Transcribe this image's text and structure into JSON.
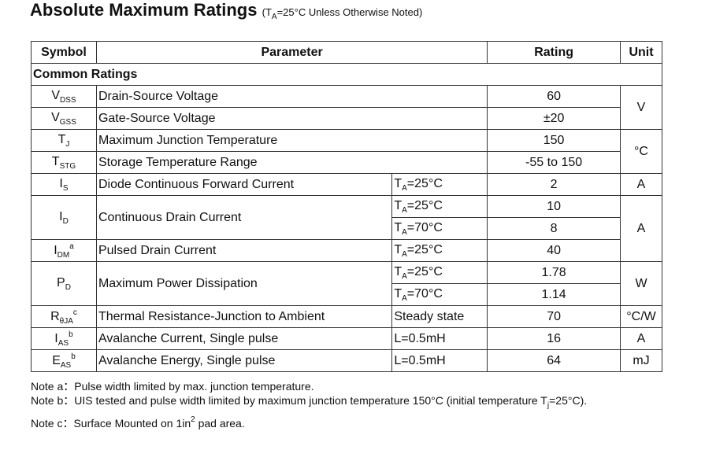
{
  "title": "Absolute Maximum Ratings",
  "title_note": {
    "pre": "(T",
    "sub": "A",
    "post": "=25°C Unless Otherwise Noted)"
  },
  "table": {
    "headers": [
      "Symbol",
      "Parameter",
      "Rating",
      "Unit"
    ],
    "section": "Common Ratings",
    "rows": [
      {
        "symbol": {
          "main": "V",
          "sub": "DSS"
        },
        "parameter": "Drain-Source Voltage",
        "rating": "60"
      },
      {
        "symbol": {
          "main": "V",
          "sub": "GSS"
        },
        "parameter": "Gate-Source Voltage",
        "rating": "±20"
      },
      {
        "symbol": {
          "main": "T",
          "sub": "J"
        },
        "parameter": "Maximum Junction Temperature",
        "rating": "150"
      },
      {
        "symbol": {
          "main": "T",
          "sub": "STG"
        },
        "parameter": "Storage Temperature Range",
        "rating": "-55 to 150"
      },
      {
        "symbol": {
          "main": "I",
          "sub": "S"
        },
        "parameter": "Diode Continuous Forward Current",
        "condition": {
          "main": "T",
          "sub": "A",
          "post": "=25°C"
        },
        "rating": "2"
      },
      {
        "symbol": {
          "main": "I",
          "sub": "D"
        },
        "parameter": "Continuous Drain Current",
        "conditions": [
          {
            "main": "T",
            "sub": "A",
            "post": "=25°C"
          },
          {
            "main": "T",
            "sub": "A",
            "post": "=70°C"
          }
        ],
        "ratings": [
          "10",
          "8"
        ]
      },
      {
        "symbol": {
          "main": "I",
          "sub": "DM",
          "sup": "a"
        },
        "parameter": "Pulsed Drain Current",
        "condition": {
          "main": "T",
          "sub": "A",
          "post": "=25°C"
        },
        "rating": "40"
      },
      {
        "symbol": {
          "main": "P",
          "sub": "D"
        },
        "parameter": "Maximum Power Dissipation",
        "conditions": [
          {
            "main": "T",
            "sub": "A",
            "post": "=25°C"
          },
          {
            "main": "T",
            "sub": "A",
            "post": "=70°C"
          }
        ],
        "ratings": [
          "1.78",
          "1.14"
        ]
      },
      {
        "symbol": {
          "main": "R",
          "sub": "θJA",
          "sup": "c"
        },
        "parameter": "Thermal Resistance-Junction to Ambient",
        "condition": "Steady state",
        "rating": "70"
      },
      {
        "symbol": {
          "main": "I",
          "sub": "AS",
          "sup": "b"
        },
        "parameter": "Avalanche Current, Single pulse",
        "condition": "L=0.5mH",
        "rating": "16"
      },
      {
        "symbol": {
          "main": "E",
          "sub": "AS",
          "sup": "b"
        },
        "parameter": "Avalanche Energy, Single pulse",
        "condition": "L=0.5mH",
        "rating": "64"
      }
    ],
    "units": [
      "V",
      "°C",
      "A",
      "A",
      "W",
      "°C/W",
      "A",
      "mJ"
    ]
  },
  "notes": [
    {
      "label": "Note a：",
      "text": "Pulse width limited by max. junction temperature."
    },
    {
      "label": "Note b：",
      "pre": "UIS tested and pulse width limited by maximum junction temperature 150°C (initial temperature T",
      "sub": "j",
      "post": "=25°C)."
    },
    {
      "label": "Note c：",
      "pre": "Surface Mounted on 1in",
      "sup": "2",
      "post": " pad area."
    }
  ]
}
